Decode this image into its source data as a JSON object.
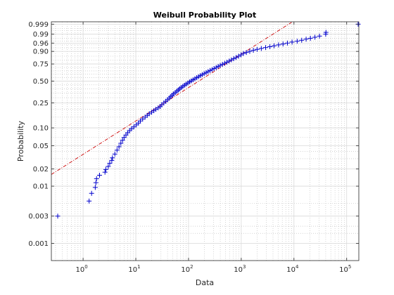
{
  "chart_data": {
    "type": "scatter",
    "title": "Weibull Probability Plot",
    "xlabel": "Data",
    "ylabel": "Probability",
    "x_scale": "log",
    "y_scale": "weibull-probability",
    "xlim": [
      0.25,
      170000
    ],
    "ylim": [
      0.0005,
      0.9995
    ],
    "grid": true,
    "x_ticks": [
      {
        "value": 1,
        "base": "10",
        "exp": "0"
      },
      {
        "value": 10,
        "base": "10",
        "exp": "1"
      },
      {
        "value": 100,
        "base": "10",
        "exp": "2"
      },
      {
        "value": 1000,
        "base": "10",
        "exp": "3"
      },
      {
        "value": 10000,
        "base": "10",
        "exp": "4"
      },
      {
        "value": 100000,
        "base": "10",
        "exp": "5"
      }
    ],
    "y_ticks": [
      {
        "value": 0.001,
        "label": "0.001"
      },
      {
        "value": 0.003,
        "label": "0.003"
      },
      {
        "value": 0.01,
        "label": "0.01"
      },
      {
        "value": 0.02,
        "label": "0.02"
      },
      {
        "value": 0.05,
        "label": "0.05"
      },
      {
        "value": 0.1,
        "label": "0.10"
      },
      {
        "value": 0.25,
        "label": "0.25"
      },
      {
        "value": 0.5,
        "label": "0.50"
      },
      {
        "value": 0.75,
        "label": "0.75"
      },
      {
        "value": 0.9,
        "label": "0.90"
      },
      {
        "value": 0.96,
        "label": "0.96"
      },
      {
        "value": 0.99,
        "label": "0.99"
      },
      {
        "value": 0.999,
        "label": "0.999"
      }
    ],
    "series": [
      {
        "type": "scatter",
        "marker": "+",
        "color": "#0000cc",
        "points": [
          [
            0.33,
            0.003
          ],
          [
            1.3,
            0.0055
          ],
          [
            1.45,
            0.0075
          ],
          [
            1.7,
            0.0095
          ],
          [
            1.75,
            0.0115
          ],
          [
            1.8,
            0.0135
          ],
          [
            2.05,
            0.0155
          ],
          [
            2.6,
            0.0175
          ],
          [
            2.7,
            0.0195
          ],
          [
            3.0,
            0.022
          ],
          [
            3.2,
            0.025
          ],
          [
            3.5,
            0.028
          ],
          [
            3.6,
            0.031
          ],
          [
            4.0,
            0.036
          ],
          [
            4.4,
            0.042
          ],
          [
            4.8,
            0.048
          ],
          [
            5.2,
            0.055
          ],
          [
            5.6,
            0.062
          ],
          [
            6.0,
            0.069
          ],
          [
            6.5,
            0.076
          ],
          [
            7.0,
            0.083
          ],
          [
            7.6,
            0.09
          ],
          [
            8.3,
            0.097
          ],
          [
            9.2,
            0.104
          ],
          [
            10.2,
            0.112
          ],
          [
            11.2,
            0.12
          ],
          [
            12.2,
            0.13
          ],
          [
            13.5,
            0.14
          ],
          [
            15.0,
            0.15
          ],
          [
            16.5,
            0.16
          ],
          [
            18.0,
            0.17
          ],
          [
            20.0,
            0.18
          ],
          [
            22.0,
            0.19
          ],
          [
            24.0,
            0.2
          ],
          [
            26.5,
            0.21
          ],
          [
            29.0,
            0.22
          ],
          [
            31.0,
            0.235
          ],
          [
            34.0,
            0.25
          ],
          [
            37.0,
            0.265
          ],
          [
            40.0,
            0.28
          ],
          [
            43.0,
            0.295
          ],
          [
            46.0,
            0.31
          ],
          [
            49.0,
            0.325
          ],
          [
            52.0,
            0.34
          ],
          [
            56.0,
            0.355
          ],
          [
            60.0,
            0.37
          ],
          [
            64.0,
            0.385
          ],
          [
            68.0,
            0.4
          ],
          [
            73.0,
            0.415
          ],
          [
            78.0,
            0.43
          ],
          [
            84.0,
            0.445
          ],
          [
            90.0,
            0.46
          ],
          [
            97.0,
            0.475
          ],
          [
            105.0,
            0.49
          ],
          [
            113.0,
            0.505
          ],
          [
            122.0,
            0.52
          ],
          [
            132.0,
            0.535
          ],
          [
            143.0,
            0.55
          ],
          [
            155.0,
            0.565
          ],
          [
            168.0,
            0.58
          ],
          [
            182.0,
            0.595
          ],
          [
            198.0,
            0.61
          ],
          [
            216.0,
            0.625
          ],
          [
            235.0,
            0.64
          ],
          [
            256.0,
            0.655
          ],
          [
            280.0,
            0.67
          ],
          [
            305.0,
            0.685
          ],
          [
            335.0,
            0.7
          ],
          [
            365.0,
            0.715
          ],
          [
            400.0,
            0.73
          ],
          [
            440.0,
            0.745
          ],
          [
            485.0,
            0.76
          ],
          [
            535.0,
            0.775
          ],
          [
            590.0,
            0.79
          ],
          [
            650.0,
            0.805
          ],
          [
            720.0,
            0.82
          ],
          [
            800.0,
            0.835
          ],
          [
            890.0,
            0.85
          ],
          [
            990.0,
            0.865
          ],
          [
            1100.0,
            0.88
          ],
          [
            1250.0,
            0.89
          ],
          [
            1450.0,
            0.9
          ],
          [
            1700.0,
            0.91
          ],
          [
            2000.0,
            0.918
          ],
          [
            2400.0,
            0.925
          ],
          [
            2900.0,
            0.932
          ],
          [
            3500.0,
            0.938
          ],
          [
            4200.0,
            0.944
          ],
          [
            5100.0,
            0.95
          ],
          [
            6200.0,
            0.955
          ],
          [
            7500.0,
            0.96
          ],
          [
            9200.0,
            0.965
          ],
          [
            11500.0,
            0.969
          ],
          [
            14000.0,
            0.973
          ],
          [
            17000.0,
            0.977
          ],
          [
            20500.0,
            0.98
          ],
          [
            25000.0,
            0.983
          ],
          [
            30500.0,
            0.986
          ],
          [
            40000.0,
            0.99
          ],
          [
            40500.0,
            0.993
          ],
          [
            165000.0,
            0.999
          ]
        ]
      },
      {
        "type": "line",
        "style": "dash-dot",
        "color": "#cc0000",
        "points": [
          [
            0.25,
            0.016
          ],
          [
            9000,
            0.9994
          ]
        ]
      }
    ]
  }
}
